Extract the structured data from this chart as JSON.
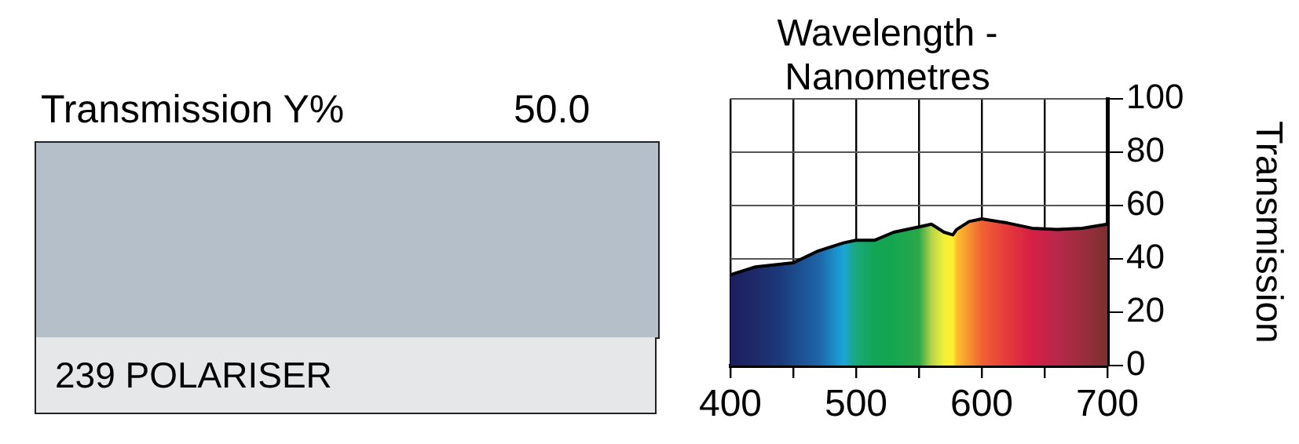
{
  "chart_data": [
    {
      "type": "other",
      "color": "#b4bfca",
      "annotations": [
        "Transmission Y%",
        "50.0",
        "239 POLARISER"
      ]
    },
    {
      "type": "area",
      "title": "Wavelength - Nanometres",
      "ylabel": "Transmission",
      "x": [
        400,
        420,
        440,
        450,
        470,
        490,
        500,
        515,
        530,
        550,
        560,
        570,
        577,
        580,
        590,
        600,
        620,
        640,
        660,
        680,
        700
      ],
      "series": [
        {
          "color": "#000000",
          "values": [
            34,
            37,
            38,
            38.5,
            43,
            46,
            47,
            47,
            50,
            52,
            53,
            50,
            49,
            51,
            54,
            55,
            53.5,
            51.5,
            51,
            51.5,
            53
          ],
          "colors": [
            "#1d1f5e",
            "#1e2a6a",
            "#1b3a7a",
            "#1b4a8a",
            "#1e63a8",
            "#1aa5d8",
            "#1aa87a",
            "#12a554",
            "#15a550",
            "#2aa84a",
            "#b5d34a",
            "#f2ef3a",
            "#fff12a",
            "#fbc12a",
            "#f59330",
            "#ef6233",
            "#e63a3a",
            "#d61f45",
            "#b8284a",
            "#9b2d3e",
            "#7d3030"
          ]
        }
      ],
      "xlim": [
        400,
        700
      ],
      "xticks": [
        400,
        {
          "value": 450,
          "label": null
        },
        500,
        {
          "value": 550,
          "label": null
        },
        600,
        {
          "value": 650,
          "label": null
        },
        700
      ],
      "ylim": [
        0,
        100
      ],
      "yticks": [
        0,
        20,
        40,
        60,
        80,
        100
      ],
      "grid": true,
      "legend": false,
      "marker": "none",
      "line_style": "solid"
    }
  ]
}
